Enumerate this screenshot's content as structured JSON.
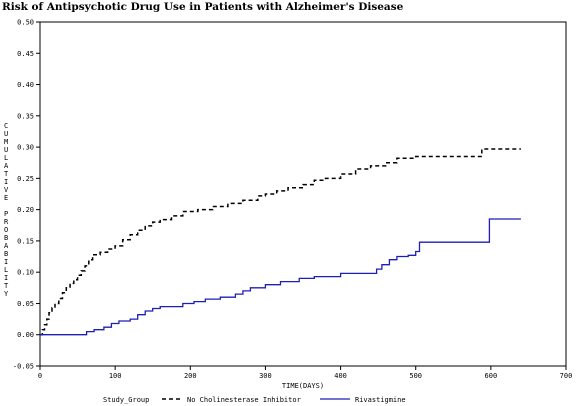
{
  "chart_data": {
    "type": "line",
    "title": "Risk of Antipsychotic Drug Use in Patients with Alzheimer's Disease",
    "xlabel": "TIME(DAYS)",
    "ylabel": "CUMULATIVE PROBABILITY",
    "xlim": [
      0,
      700
    ],
    "ylim": [
      -0.05,
      0.5
    ],
    "x_ticks": [
      "0",
      "100",
      "200",
      "300",
      "400",
      "500",
      "600",
      "700"
    ],
    "y_ticks": [
      "-0.05",
      "0.00",
      "0.05",
      "0.10",
      "0.15",
      "0.20",
      "0.25",
      "0.30",
      "0.35",
      "0.40",
      "0.45",
      "0.50"
    ],
    "grid": false,
    "legend_title": "Study_Group",
    "legend_position": "bottom",
    "series": [
      {
        "name": "No Cholinesterase Inhibitor",
        "style": "dashed",
        "color": "#000000",
        "points": [
          [
            0,
            0
          ],
          [
            3,
            0.008
          ],
          [
            6,
            0.016
          ],
          [
            9,
            0.025
          ],
          [
            12,
            0.035
          ],
          [
            16,
            0.043
          ],
          [
            20,
            0.05
          ],
          [
            25,
            0.058
          ],
          [
            30,
            0.067
          ],
          [
            35,
            0.075
          ],
          [
            40,
            0.082
          ],
          [
            45,
            0.088
          ],
          [
            50,
            0.095
          ],
          [
            55,
            0.102
          ],
          [
            60,
            0.11
          ],
          [
            65,
            0.12
          ],
          [
            70,
            0.128
          ],
          [
            80,
            0.132
          ],
          [
            90,
            0.137
          ],
          [
            100,
            0.142
          ],
          [
            110,
            0.152
          ],
          [
            120,
            0.16
          ],
          [
            130,
            0.167
          ],
          [
            140,
            0.174
          ],
          [
            150,
            0.18
          ],
          [
            160,
            0.184
          ],
          [
            175,
            0.19
          ],
          [
            190,
            0.197
          ],
          [
            210,
            0.2
          ],
          [
            230,
            0.205
          ],
          [
            250,
            0.21
          ],
          [
            270,
            0.215
          ],
          [
            290,
            0.222
          ],
          [
            300,
            0.225
          ],
          [
            315,
            0.23
          ],
          [
            330,
            0.235
          ],
          [
            350,
            0.24
          ],
          [
            365,
            0.247
          ],
          [
            380,
            0.25
          ],
          [
            400,
            0.257
          ],
          [
            420,
            0.265
          ],
          [
            440,
            0.27
          ],
          [
            460,
            0.275
          ],
          [
            475,
            0.282
          ],
          [
            500,
            0.285
          ],
          [
            550,
            0.285
          ],
          [
            583,
            0.285
          ],
          [
            588,
            0.297
          ],
          [
            640,
            0.297
          ]
        ]
      },
      {
        "name": "Rivastigmine",
        "style": "solid",
        "color": "#1f1fb4",
        "points": [
          [
            0,
            0
          ],
          [
            55,
            0
          ],
          [
            62,
            0.005
          ],
          [
            72,
            0.008
          ],
          [
            85,
            0.012
          ],
          [
            95,
            0.018
          ],
          [
            105,
            0.022
          ],
          [
            120,
            0.025
          ],
          [
            130,
            0.032
          ],
          [
            140,
            0.038
          ],
          [
            150,
            0.042
          ],
          [
            160,
            0.045
          ],
          [
            190,
            0.05
          ],
          [
            205,
            0.053
          ],
          [
            220,
            0.057
          ],
          [
            240,
            0.06
          ],
          [
            260,
            0.065
          ],
          [
            270,
            0.07
          ],
          [
            280,
            0.075
          ],
          [
            300,
            0.08
          ],
          [
            320,
            0.085
          ],
          [
            345,
            0.09
          ],
          [
            365,
            0.093
          ],
          [
            400,
            0.098
          ],
          [
            440,
            0.098
          ],
          [
            448,
            0.105
          ],
          [
            455,
            0.112
          ],
          [
            465,
            0.12
          ],
          [
            475,
            0.125
          ],
          [
            490,
            0.127
          ],
          [
            500,
            0.133
          ],
          [
            505,
            0.148
          ],
          [
            555,
            0.148
          ],
          [
            597,
            0.148
          ],
          [
            598,
            0.185
          ],
          [
            640,
            0.185
          ]
        ]
      }
    ]
  }
}
